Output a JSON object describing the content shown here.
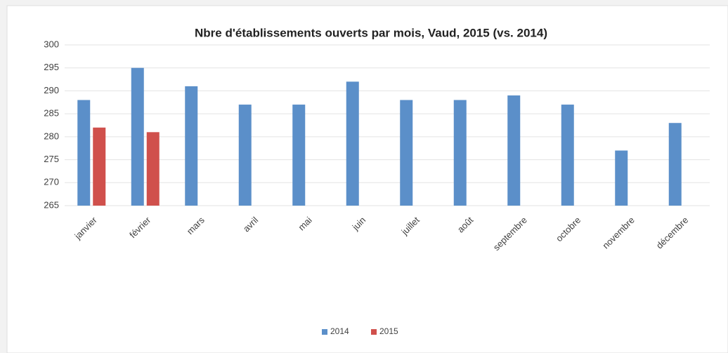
{
  "chart_data": {
    "type": "bar",
    "title": "Nbre d'établissements ouverts par mois, Vaud, 2015 (vs. 2014)",
    "categories": [
      "janvier",
      "février",
      "mars",
      "avril",
      "mai",
      "juin",
      "juillet",
      "août",
      "septembre",
      "octobre",
      "novembre",
      "décembre"
    ],
    "series": [
      {
        "name": "2014",
        "color": "#5b8fc9",
        "values": [
          288,
          295,
          291,
          287,
          287,
          292,
          288,
          288,
          289,
          287,
          277,
          283
        ]
      },
      {
        "name": "2015",
        "color": "#d0504c",
        "values": [
          282,
          281,
          null,
          null,
          null,
          null,
          null,
          null,
          null,
          null,
          null,
          null
        ]
      }
    ],
    "ylim": [
      265,
      300
    ],
    "yticks": [
      265,
      270,
      275,
      280,
      285,
      290,
      295,
      300
    ],
    "grid": true,
    "legend": "bottom"
  }
}
